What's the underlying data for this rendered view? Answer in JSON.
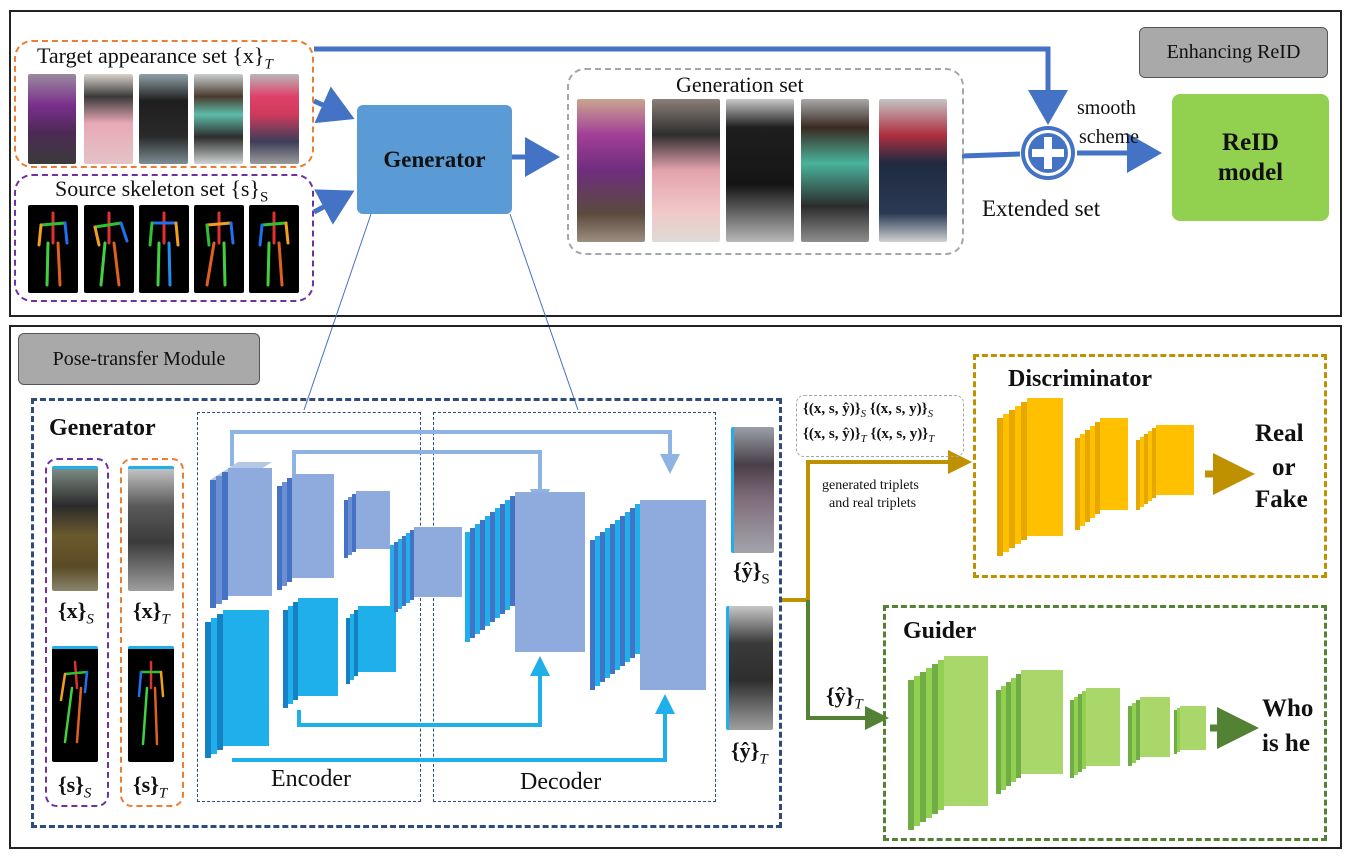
{
  "top_panel": {
    "tag_label": "Enhancing ReID",
    "target_set_label": "Target appearance set {x}",
    "target_set_sub": "T",
    "source_set_label": "Source skeleton set {s}",
    "source_set_sub": "S",
    "generator_label": "Generator",
    "generation_set_label": "Generation set",
    "smooth_label": "smooth",
    "scheme_label": "scheme",
    "extended_set_label": "Extended set",
    "reid_label_1": "ReID",
    "reid_label_2": "model",
    "plus_icon": "plus-circle-icon"
  },
  "bottom_panel": {
    "tag_label": "Pose-transfer Module",
    "generator_title": "Generator",
    "x_s_label": "{x}",
    "x_s_sub": "S",
    "x_t_label": "{x}",
    "x_t_sub": "T",
    "s_s_label": "{s}",
    "s_s_sub": "S",
    "s_t_label": "{s}",
    "s_t_sub": "T",
    "encoder_label": "Encoder",
    "decoder_label": "Decoder",
    "yhat_s_label": "{ŷ}",
    "yhat_s_sub": "S",
    "yhat_t_label": "{ŷ}",
    "yhat_t_sub": "T",
    "yhat_t_branch_label": "{ŷ}",
    "yhat_t_branch_sub": "T",
    "triplets_line1a": "{(x, s, ŷ)}",
    "triplets_line1a_sub": "S",
    "triplets_line1b": "{(x, s, y)}",
    "triplets_line1b_sub": "S",
    "triplets_line2a": "{(x, s, ŷ)}",
    "triplets_line2a_sub": "T",
    "triplets_line2b": "{(x, s, y)}",
    "triplets_line2b_sub": "T",
    "generated_line1": "generated triplets",
    "generated_line2": "and real triplets",
    "discriminator_title": "Discriminator",
    "real_label": "Real",
    "or_label": "or",
    "fake_label": "Fake",
    "guider_title": "Guider",
    "who_label": "Who",
    "is_he_label": "is he"
  },
  "colors": {
    "generator_box": "#5b9bd5",
    "reid_box": "#92d050",
    "discriminator_border": "#bf9000",
    "discriminator_fill": "#ffc000",
    "guider_border": "#548235",
    "guider_fill": "#92d050",
    "encoder_top": "#8faadc",
    "encoder_bottom": "#1fb0ec",
    "arrow_blue": "#4472c4",
    "orange_dash": "#ed7d31",
    "purple_dash": "#7030a0",
    "panel_dash": "#2f4b7c"
  }
}
